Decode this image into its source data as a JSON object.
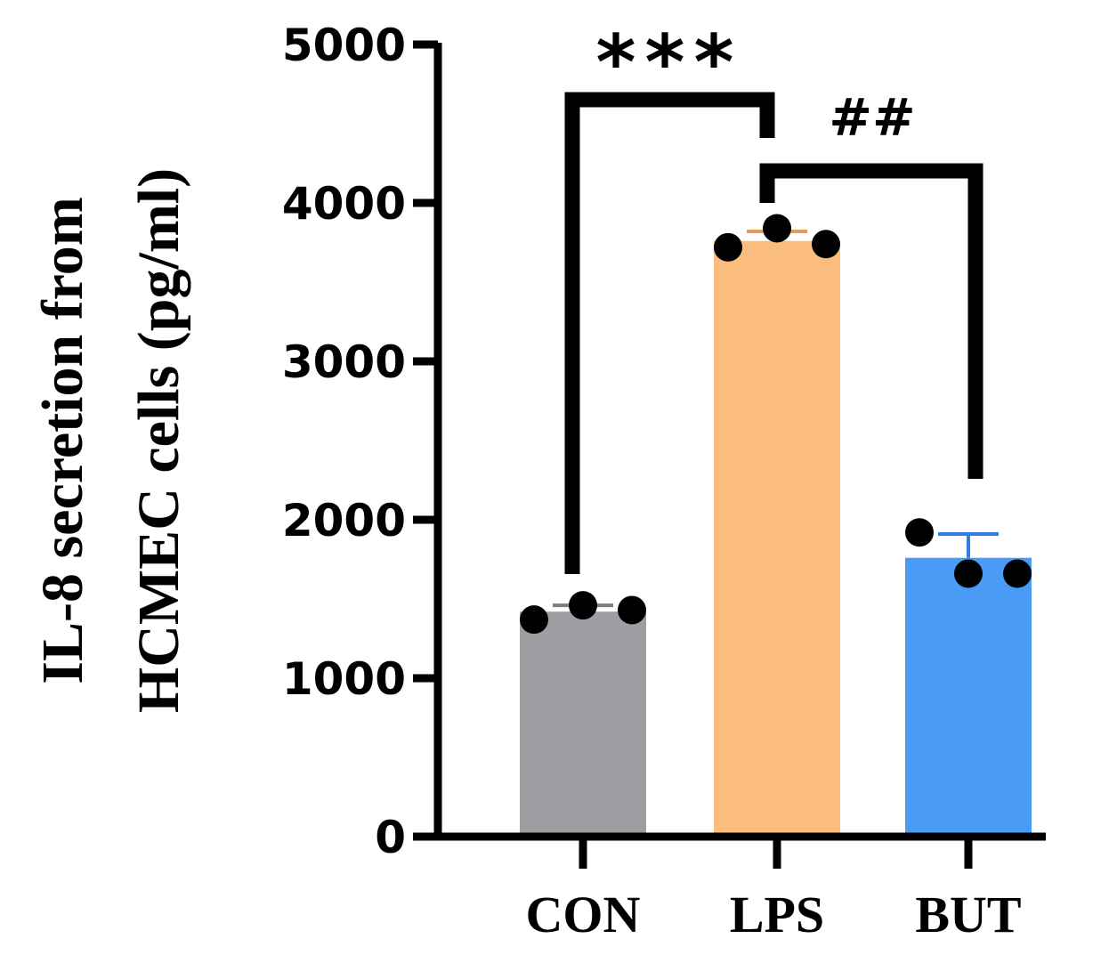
{
  "chart_data": {
    "type": "bar",
    "categories": [
      "CON",
      "LPS",
      "BUT"
    ],
    "values": [
      1420,
      3760,
      1760
    ],
    "error": [
      40,
      60,
      150
    ],
    "points": [
      [
        1370,
        1460,
        1430
      ],
      [
        3720,
        3840,
        3740
      ],
      [
        1920,
        1660,
        1660
      ]
    ],
    "colors": [
      "#9e9ea2",
      "#fbbd7e",
      "#4a9bf6"
    ],
    "ylabel_lines": [
      "IL-8 secretion from",
      "HCMEC cells (pg/ml)"
    ],
    "ylim": [
      0,
      5000
    ],
    "yticks": [
      0,
      1000,
      2000,
      3000,
      4000,
      5000
    ],
    "yticklabels": [
      "0",
      "1000",
      "2000",
      "3000",
      "4000",
      "5000"
    ],
    "significance": [
      {
        "from": "CON",
        "to": "LPS",
        "label": "***"
      },
      {
        "from": "LPS",
        "to": "BUT",
        "label": "##"
      }
    ]
  }
}
